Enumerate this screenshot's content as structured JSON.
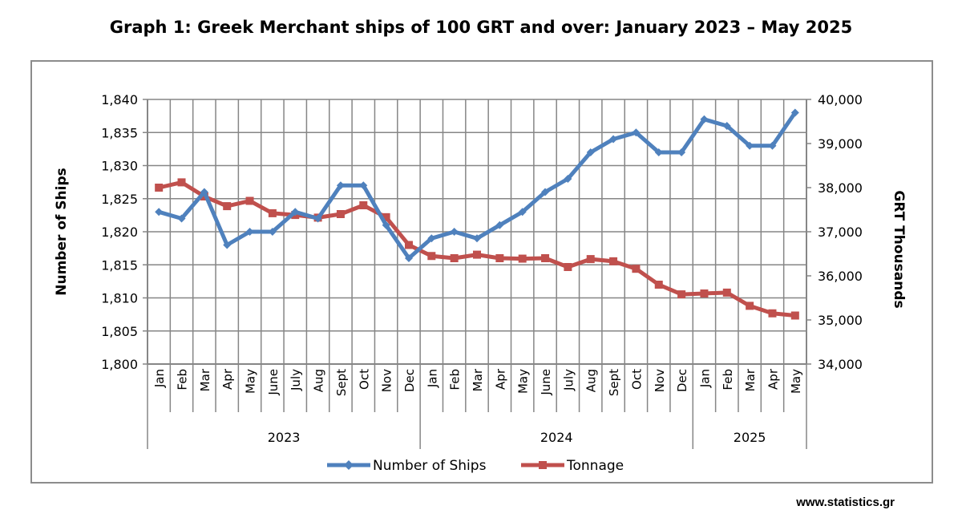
{
  "title": "Graph 1: Greek Merchant ships of 100 GRT and over: January 2023 – May 2025",
  "source": "www.statistics.gr",
  "colors": {
    "ships": "#4f81bd",
    "tonnage": "#c0504d",
    "grid": "#868686"
  },
  "chart_data": {
    "type": "line",
    "title": "Graph 1: Greek Merchant ships of 100 GRT and over: January 2023 – May 2025",
    "categories": [
      "Jan",
      "Feb",
      "Mar",
      "Apr",
      "May",
      "June",
      "July",
      "Aug",
      "Sept",
      "Oct",
      "Nov",
      "Dec",
      "Jan",
      "Feb",
      "Mar",
      "Apr",
      "May",
      "June",
      "July",
      "Aug",
      "Sept",
      "Oct",
      "Nov",
      "Dec",
      "Jan",
      "Feb",
      "Mar",
      "Apr",
      "May"
    ],
    "groups": [
      {
        "label": "2023",
        "start": 0,
        "end": 11
      },
      {
        "label": "2024",
        "start": 12,
        "end": 23
      },
      {
        "label": "2025",
        "start": 24,
        "end": 28
      }
    ],
    "ylabel": "Number of Ships",
    "y2label": "GRT Thousands",
    "ylim": [
      1800,
      1840
    ],
    "y2lim": [
      34000,
      40000
    ],
    "yticks": [
      "1,800",
      "1,805",
      "1,810",
      "1,815",
      "1,820",
      "1,825",
      "1,830",
      "1,835",
      "1,840"
    ],
    "y2ticks": [
      "34,000",
      "35,000",
      "36,000",
      "37,000",
      "38,000",
      "39,000",
      "40,000"
    ],
    "legend_position": "bottom",
    "series": [
      {
        "name": "Number of Ships",
        "axis": "left",
        "values": [
          1823,
          1822,
          1826,
          1818,
          1820,
          1820,
          1823,
          1822,
          1827,
          1827,
          1821,
          1816,
          1819,
          1820,
          1819,
          1821,
          1823,
          1826,
          1828,
          1832,
          1834,
          1835,
          1832,
          1832,
          1837,
          1836,
          1833,
          1833,
          1838
        ]
      },
      {
        "name": "Tonnage",
        "axis": "right",
        "values": [
          38000,
          38120,
          37800,
          37580,
          37700,
          37420,
          37380,
          37320,
          37400,
          37600,
          37330,
          36700,
          36450,
          36400,
          36480,
          36400,
          36390,
          36400,
          36200,
          36380,
          36330,
          36160,
          35800,
          35580,
          35600,
          35620,
          35320,
          35150,
          35100
        ]
      }
    ]
  }
}
